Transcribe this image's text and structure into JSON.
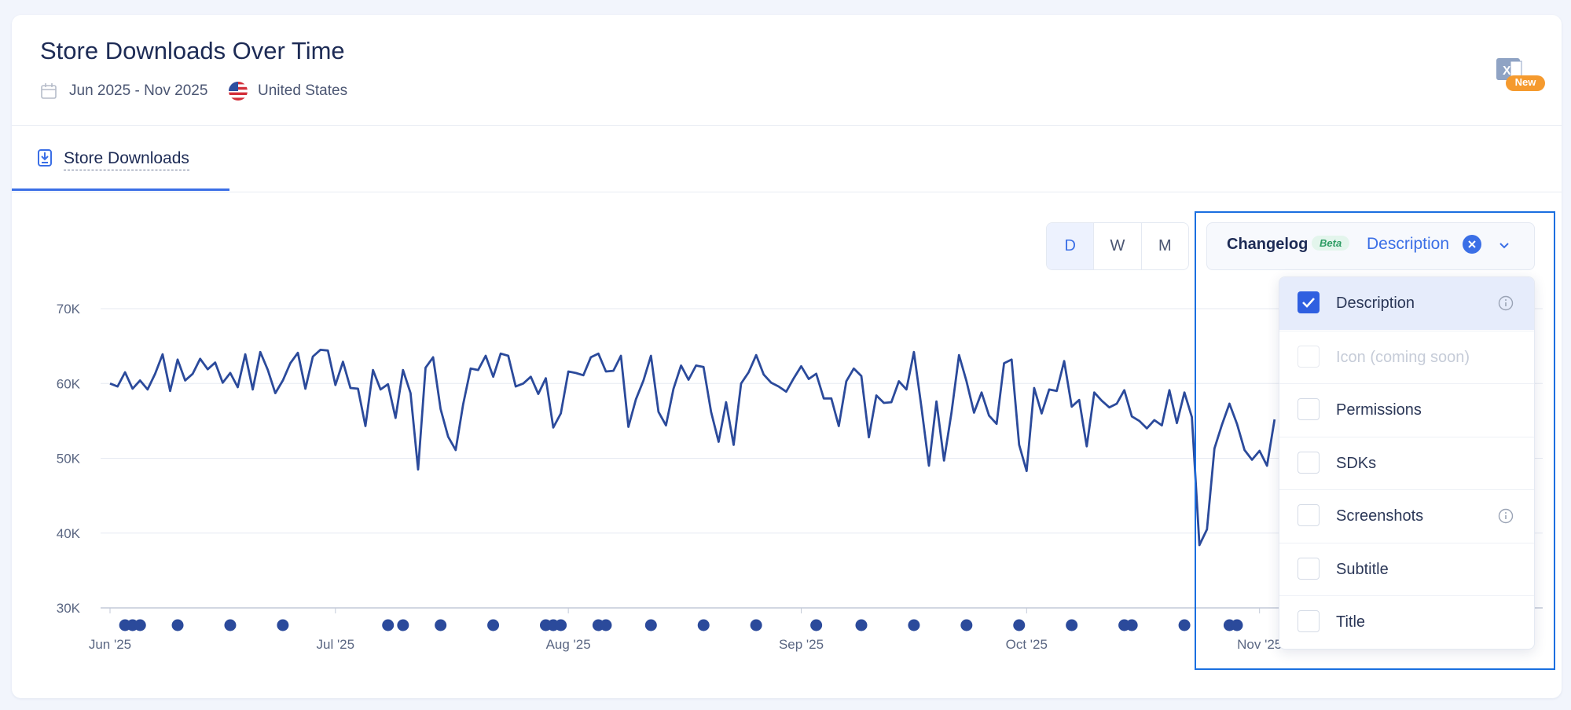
{
  "header": {
    "title": "Store Downloads Over Time",
    "date_range": "Jun 2025 - Nov 2025",
    "country": "United States",
    "badge": "New"
  },
  "tabs": [
    {
      "label": "Store Downloads"
    }
  ],
  "granularity": [
    "D",
    "W",
    "M"
  ],
  "changelog": {
    "label": "Changelog",
    "badge": "Beta",
    "selected_label": "Description",
    "options": [
      {
        "label": "Description",
        "checked": true,
        "info": true
      },
      {
        "label": "Icon (coming soon)",
        "disabled": true
      },
      {
        "label": "Permissions"
      },
      {
        "label": "SDKs"
      },
      {
        "label": "Screenshots",
        "info": true
      },
      {
        "label": "Subtitle"
      },
      {
        "label": "Title"
      }
    ]
  },
  "chart_data": {
    "type": "line",
    "color": "#2b4a9b",
    "grid": true,
    "ylim": [
      30000,
      70000
    ],
    "yticks": [
      {
        "value": 30000,
        "label": "30K"
      },
      {
        "value": 40000,
        "label": "40K"
      },
      {
        "value": 50000,
        "label": "50K"
      },
      {
        "value": 60000,
        "label": "60K"
      },
      {
        "value": 70000,
        "label": "70K"
      }
    ],
    "categories": [
      "Jun '25",
      null,
      null,
      null,
      null,
      null,
      null,
      null,
      null,
      null,
      null,
      null,
      null,
      null,
      null,
      null,
      null,
      null,
      null,
      null,
      null,
      null,
      null,
      null,
      null,
      null,
      null,
      null,
      null,
      null,
      "Jul '25",
      null,
      null,
      null,
      null,
      null,
      null,
      null,
      null,
      null,
      null,
      null,
      null,
      null,
      null,
      null,
      null,
      null,
      null,
      null,
      null,
      null,
      null,
      null,
      null,
      null,
      null,
      null,
      null,
      null,
      null,
      "Aug '25",
      null,
      null,
      null,
      null,
      null,
      null,
      null,
      null,
      null,
      null,
      null,
      null,
      null,
      null,
      null,
      null,
      null,
      null,
      null,
      null,
      null,
      null,
      null,
      null,
      null,
      null,
      null,
      null,
      null,
      null,
      "Sep '25",
      null,
      null,
      null,
      null,
      null,
      null,
      null,
      null,
      null,
      null,
      null,
      null,
      null,
      null,
      null,
      null,
      null,
      null,
      null,
      null,
      null,
      null,
      null,
      null,
      null,
      null,
      null,
      null,
      null,
      "Oct '25",
      null,
      null,
      null,
      null,
      null,
      null,
      null,
      null,
      null,
      null,
      null,
      null,
      null,
      null,
      null,
      null,
      null,
      null,
      null,
      null,
      null,
      null,
      null,
      null,
      null,
      null,
      null,
      null,
      null,
      null,
      "Nov '25",
      null,
      null
    ],
    "values": [
      60000,
      59600,
      61500,
      59300,
      60400,
      59200,
      61300,
      63900,
      59000,
      63200,
      60400,
      61300,
      63300,
      61900,
      62800,
      60100,
      61400,
      59500,
      63900,
      59200,
      64200,
      61800,
      58700,
      60400,
      62700,
      64100,
      59300,
      63600,
      64500,
      64400,
      59800,
      62900,
      59400,
      59300,
      54300,
      61800,
      59200,
      59900,
      55400,
      61800,
      58700,
      48500,
      62100,
      63500,
      56600,
      52900,
      51100,
      57200,
      62000,
      61800,
      63700,
      60900,
      64000,
      63700,
      59600,
      60000,
      60900,
      58600,
      60700,
      54100,
      56000,
      61600,
      61400,
      61100,
      63500,
      64000,
      61600,
      61700,
      63700,
      54200,
      57900,
      60400,
      63700,
      56200,
      54400,
      59300,
      62400,
      60500,
      62400,
      62200,
      56200,
      52200,
      57500,
      51800,
      60000,
      61500,
      63800,
      61200,
      60100,
      59600,
      58900,
      60700,
      62300,
      60600,
      61300,
      58000,
      58000,
      54300,
      60300,
      62000,
      61000,
      52800,
      58400,
      57400,
      57500,
      60300,
      59200,
      64200,
      56800,
      49000,
      57600,
      49700,
      56100,
      63800,
      60300,
      56100,
      58800,
      55700,
      54600,
      62700,
      63200,
      51800,
      48300,
      59400,
      56000,
      59200,
      59000,
      63000,
      56900,
      57800,
      51600,
      58800,
      57700,
      56800,
      57300,
      59100,
      55600,
      55000,
      54000,
      55100,
      54400,
      59100,
      54700,
      58800,
      55500,
      38400,
      40500,
      51300,
      54500,
      57300,
      54600,
      51100,
      49800,
      51000,
      49000,
      55200
    ],
    "changelog_events": [
      2,
      3,
      4,
      9,
      16,
      23,
      37,
      39,
      44,
      51,
      58,
      59,
      60,
      65,
      66,
      72,
      79,
      86,
      94,
      100,
      107,
      114,
      121,
      128,
      135,
      136,
      143,
      149,
      150
    ]
  }
}
